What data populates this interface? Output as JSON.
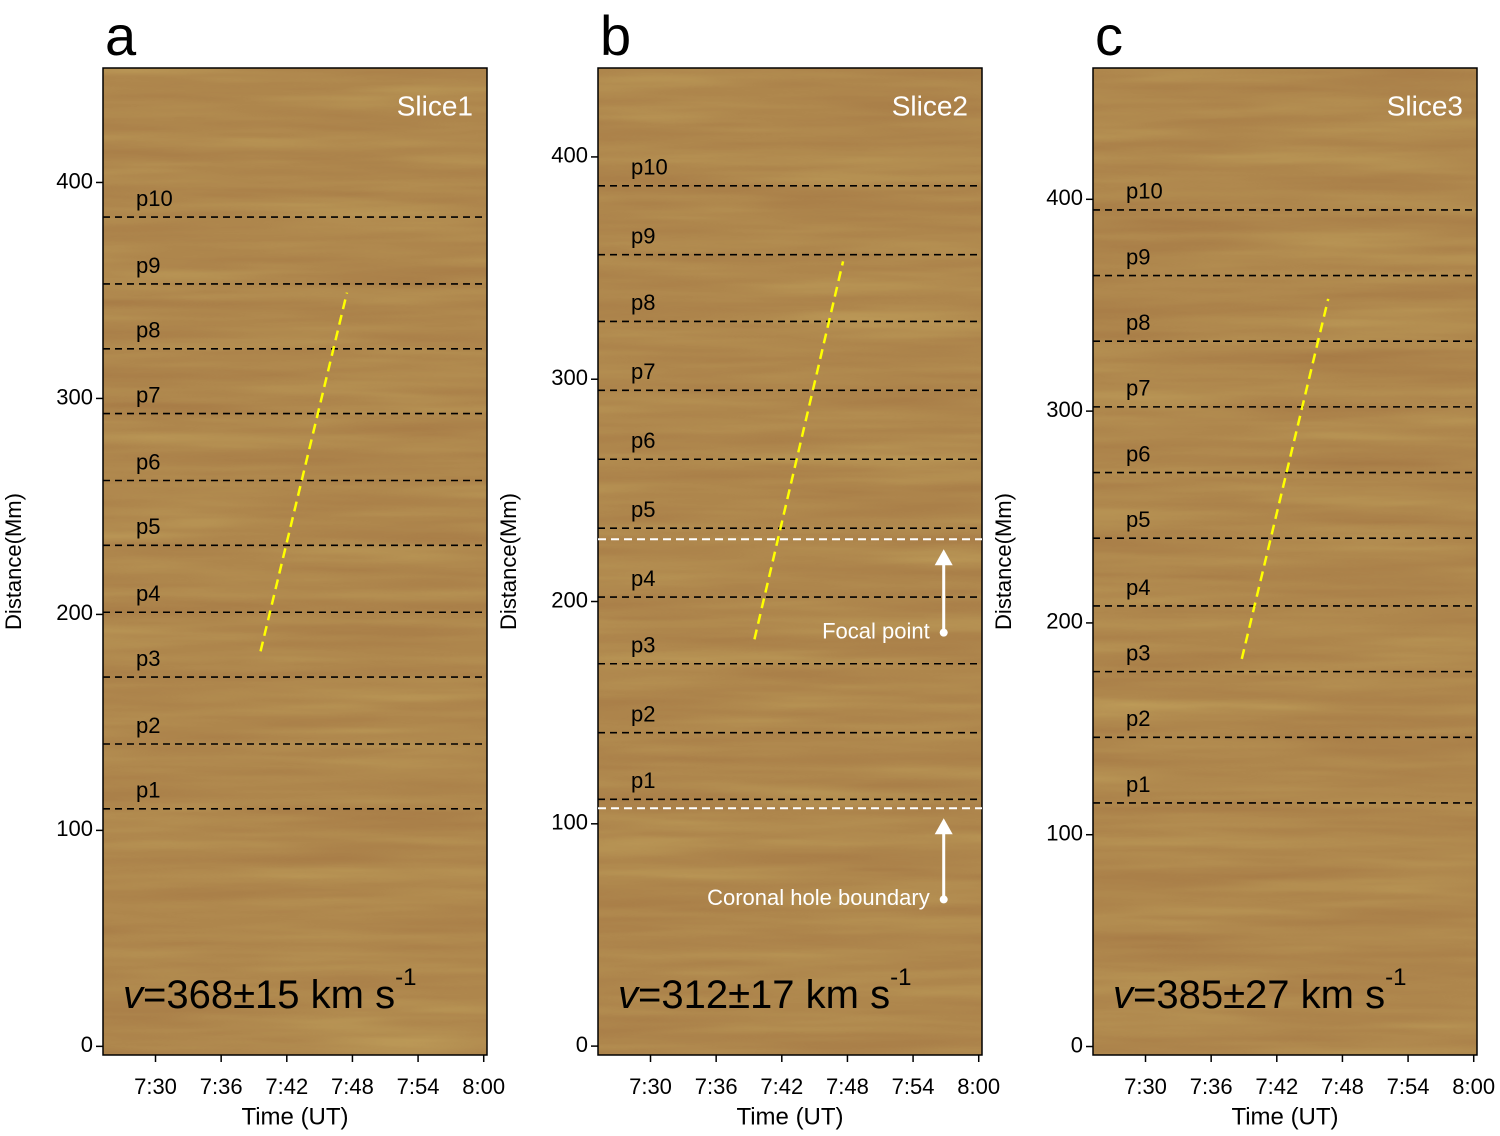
{
  "chart_data": [
    {
      "type": "image",
      "panel_label": "a",
      "title": "Slice1",
      "xlabel": "Time (UT)",
      "ylabel": "Distance(Mm)",
      "background": "#a87d47",
      "xlim": [
        25.2,
        60.3
      ],
      "xticks": [
        {
          "value": 30,
          "label": "7:30"
        },
        {
          "value": 36,
          "label": "7:36"
        },
        {
          "value": 42,
          "label": "7:42"
        },
        {
          "value": 48,
          "label": "7:48"
        },
        {
          "value": 54,
          "label": "7:54"
        },
        {
          "value": 60,
          "label": "8:00"
        }
      ],
      "ylim": [
        -4,
        453
      ],
      "yticks": [
        0,
        100,
        200,
        300,
        400
      ],
      "levels": [
        {
          "label": "p1",
          "value": 110
        },
        {
          "label": "p2",
          "value": 140
        },
        {
          "label": "p3",
          "value": 171
        },
        {
          "label": "p4",
          "value": 201
        },
        {
          "label": "p5",
          "value": 232
        },
        {
          "label": "p6",
          "value": 262
        },
        {
          "label": "p7",
          "value": 293
        },
        {
          "label": "p8",
          "value": 323
        },
        {
          "label": "p9",
          "value": 353
        },
        {
          "label": "p10",
          "value": 384
        }
      ],
      "fit": {
        "color": "#ffff00",
        "x": [
          39.6,
          47.5
        ],
        "y": [
          182.9,
          349
        ]
      },
      "velocity": {
        "symbol": "v",
        "text": "=368±15 km s",
        "exponent": "-1"
      }
    },
    {
      "type": "image",
      "panel_label": "b",
      "title": "Slice2",
      "xlabel": "Time (UT)",
      "ylabel": "Distance(Mm)",
      "background": "#a87d47",
      "xlim": [
        25.2,
        60.3
      ],
      "xticks": [
        {
          "value": 30,
          "label": "7:30"
        },
        {
          "value": 36,
          "label": "7:36"
        },
        {
          "value": 42,
          "label": "7:42"
        },
        {
          "value": 48,
          "label": "7:48"
        },
        {
          "value": 54,
          "label": "7:54"
        },
        {
          "value": 60,
          "label": "8:00"
        }
      ],
      "ylim": [
        -4,
        440
      ],
      "yticks": [
        0,
        100,
        200,
        300,
        400
      ],
      "levels": [
        {
          "label": "p1",
          "value": 111
        },
        {
          "label": "p2",
          "value": 141
        },
        {
          "label": "p3",
          "value": 172
        },
        {
          "label": "p4",
          "value": 202
        },
        {
          "label": "p5",
          "value": 233
        },
        {
          "label": "p6",
          "value": 264
        },
        {
          "label": "p7",
          "value": 295
        },
        {
          "label": "p8",
          "value": 326
        },
        {
          "label": "p9",
          "value": 356
        },
        {
          "label": "p10",
          "value": 387
        }
      ],
      "fit": {
        "color": "#ffff00",
        "x": [
          39.5,
          47.6
        ],
        "y": [
          183,
          353
        ]
      },
      "markers": [
        {
          "label": "Focal point",
          "value": 228,
          "x": 56.8,
          "start": 186
        },
        {
          "label": "Coronal hole boundary",
          "value": 107,
          "x": 56.8,
          "start": 66
        }
      ],
      "velocity": {
        "symbol": "v",
        "text": "=312±17 km s",
        "exponent": "-1"
      }
    },
    {
      "type": "image",
      "panel_label": "c",
      "title": "Slice3",
      "xlabel": "Time (UT)",
      "ylabel": "Distance(Mm)",
      "background": "#a87d47",
      "xlim": [
        25.2,
        60.3
      ],
      "xticks": [
        {
          "value": 30,
          "label": "7:30"
        },
        {
          "value": 36,
          "label": "7:36"
        },
        {
          "value": 42,
          "label": "7:42"
        },
        {
          "value": 48,
          "label": "7:48"
        },
        {
          "value": 54,
          "label": "7:54"
        },
        {
          "value": 60,
          "label": "8:00"
        }
      ],
      "ylim": [
        -4,
        462
      ],
      "yticks": [
        0,
        100,
        200,
        300,
        400
      ],
      "levels": [
        {
          "label": "p1",
          "value": 115
        },
        {
          "label": "p2",
          "value": 146
        },
        {
          "label": "p3",
          "value": 177
        },
        {
          "label": "p4",
          "value": 208
        },
        {
          "label": "p5",
          "value": 240
        },
        {
          "label": "p6",
          "value": 271
        },
        {
          "label": "p7",
          "value": 302
        },
        {
          "label": "p8",
          "value": 333
        },
        {
          "label": "p9",
          "value": 364
        },
        {
          "label": "p10",
          "value": 395
        }
      ],
      "fit": {
        "color": "#ffff00",
        "x": [
          38.8,
          46.7
        ],
        "y": [
          183,
          353
        ]
      },
      "velocity": {
        "symbol": "v",
        "text": "=385±27 km s",
        "exponent": "-1"
      }
    }
  ]
}
